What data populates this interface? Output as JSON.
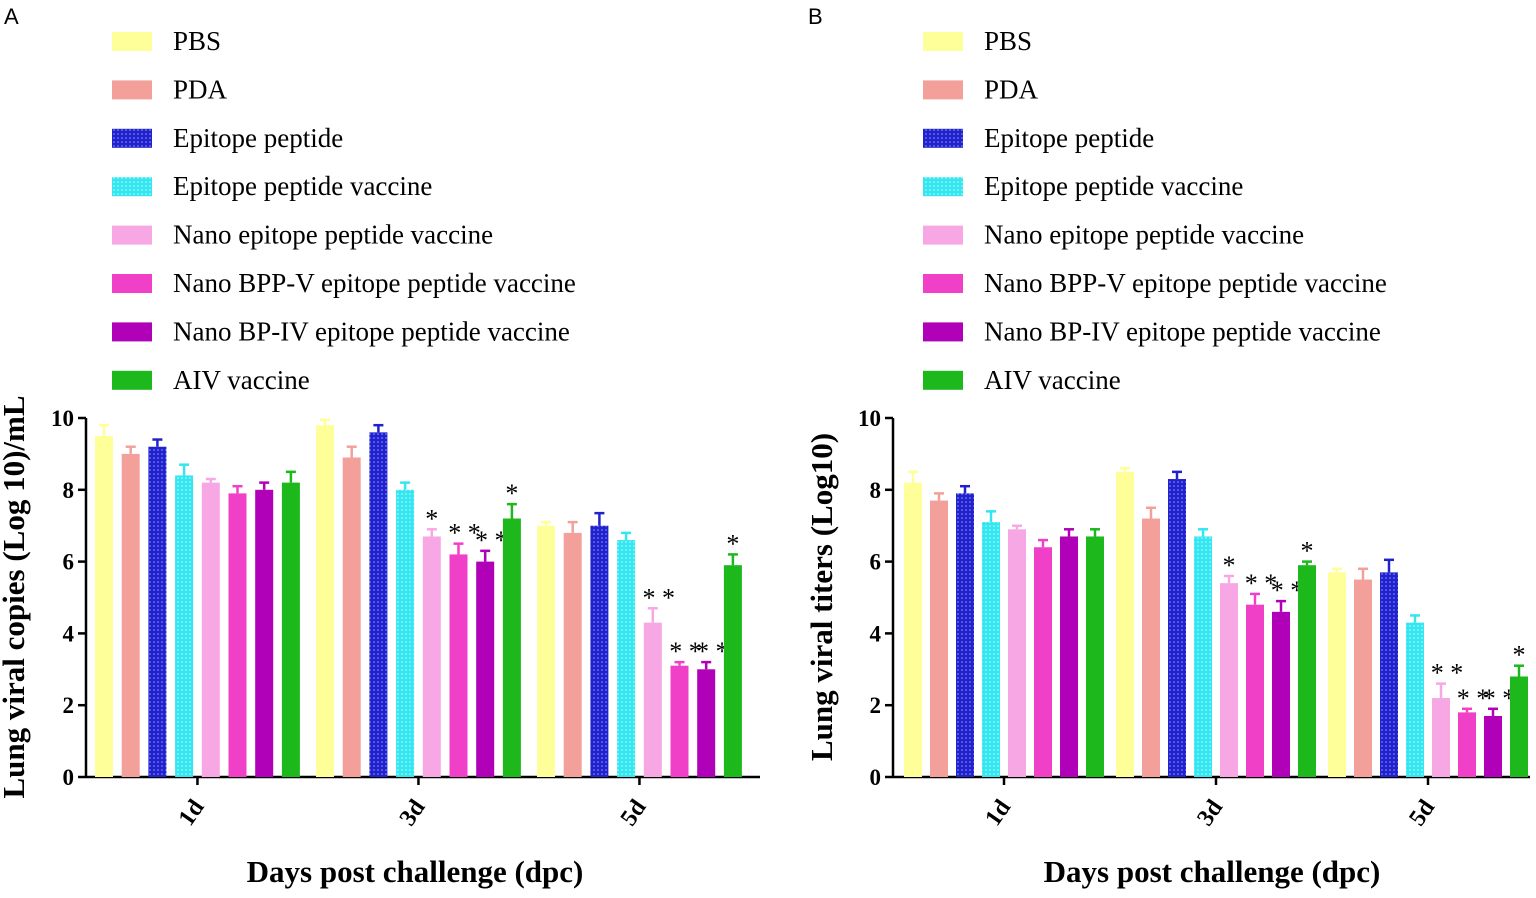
{
  "figure": {
    "panel_labels": [
      "A",
      "B"
    ]
  },
  "colors": {
    "PBS": "#ffff99",
    "PDA": "#f4a09a",
    "Epitope peptide": "#2222cc",
    "Epitope peptide vaccine": "#33e6f0",
    "Nano epitope peptide vaccine": "#f7a8e4",
    "Nano BPP-V epitope peptide vaccine": "#f040c8",
    "Nano BP-IV epitope peptide vaccine": "#b000b8",
    "AIV vaccine": "#1cb81c"
  },
  "chart_data": [
    {
      "panel": "A",
      "type": "bar",
      "title": "",
      "xlabel": "Days post challenge (dpc)",
      "ylabel": "Lung viral copies (Log 10)/mL",
      "ylim": [
        0,
        10
      ],
      "yticks": [
        "0",
        "2",
        "4",
        "6",
        "8",
        "10"
      ],
      "categories": [
        "1d",
        "3d",
        "5d"
      ],
      "legend": [
        "PBS",
        "PDA",
        "Epitope peptide",
        "Epitope peptide vaccine",
        "Nano epitope peptide vaccine",
        "Nano BPP-V epitope peptide vaccine",
        "Nano BP-IV epitope peptide vaccine",
        "AIV vaccine"
      ],
      "legend_position": "top",
      "series": [
        {
          "name": "PBS",
          "values": [
            9.5,
            9.8,
            7.0
          ],
          "errors": [
            0.3,
            0.15,
            0.1
          ],
          "stars": [
            "",
            "",
            ""
          ]
        },
        {
          "name": "PDA",
          "values": [
            9.0,
            8.9,
            6.8
          ],
          "errors": [
            0.2,
            0.3,
            0.3
          ],
          "stars": [
            "",
            "",
            ""
          ]
        },
        {
          "name": "Epitope peptide",
          "values": [
            9.2,
            9.6,
            7.0
          ],
          "errors": [
            0.2,
            0.2,
            0.35
          ],
          "stars": [
            "",
            "",
            ""
          ]
        },
        {
          "name": "Epitope peptide vaccine",
          "values": [
            8.4,
            8.0,
            6.6
          ],
          "errors": [
            0.3,
            0.2,
            0.2
          ],
          "stars": [
            "",
            "",
            ""
          ]
        },
        {
          "name": "Nano epitope peptide vaccine",
          "values": [
            8.2,
            6.7,
            4.3
          ],
          "errors": [
            0.1,
            0.2,
            0.4
          ],
          "stars": [
            "",
            "*",
            "**"
          ]
        },
        {
          "name": "Nano BPP-V epitope peptide vaccine",
          "values": [
            7.9,
            6.2,
            3.1
          ],
          "errors": [
            0.2,
            0.3,
            0.1
          ],
          "stars": [
            "",
            "**",
            "**"
          ]
        },
        {
          "name": "Nano BP-IV epitope peptide vaccine",
          "values": [
            8.0,
            6.0,
            3.0
          ],
          "errors": [
            0.2,
            0.3,
            0.2
          ],
          "stars": [
            "",
            "**",
            "**"
          ]
        },
        {
          "name": "AIV vaccine",
          "values": [
            8.2,
            7.2,
            5.9
          ],
          "errors": [
            0.3,
            0.4,
            0.3
          ],
          "stars": [
            "",
            "*",
            "*"
          ]
        }
      ]
    },
    {
      "panel": "B",
      "type": "bar",
      "title": "",
      "xlabel": "Days post challenge (dpc)",
      "ylabel": "Lung viral titers (Log10)",
      "ylim": [
        0,
        10
      ],
      "yticks": [
        "0",
        "2",
        "4",
        "6",
        "8",
        "10"
      ],
      "categories": [
        "1d",
        "3d",
        "5d"
      ],
      "legend": [
        "PBS",
        "PDA",
        "Epitope peptide",
        "Epitope peptide vaccine",
        "Nano epitope peptide vaccine",
        "Nano BPP-V epitope peptide vaccine",
        "Nano BP-IV epitope peptide vaccine",
        "AIV vaccine"
      ],
      "legend_position": "top",
      "series": [
        {
          "name": "PBS",
          "values": [
            8.2,
            8.5,
            5.7
          ],
          "errors": [
            0.3,
            0.1,
            0.1
          ],
          "stars": [
            "",
            "",
            ""
          ]
        },
        {
          "name": "PDA",
          "values": [
            7.7,
            7.2,
            5.5
          ],
          "errors": [
            0.2,
            0.3,
            0.3
          ],
          "stars": [
            "",
            "",
            ""
          ]
        },
        {
          "name": "Epitope peptide",
          "values": [
            7.9,
            8.3,
            5.7
          ],
          "errors": [
            0.2,
            0.2,
            0.35
          ],
          "stars": [
            "",
            "",
            ""
          ]
        },
        {
          "name": "Epitope peptide vaccine",
          "values": [
            7.1,
            6.7,
            4.3
          ],
          "errors": [
            0.3,
            0.2,
            0.2
          ],
          "stars": [
            "",
            "",
            ""
          ]
        },
        {
          "name": "Nano epitope peptide vaccine",
          "values": [
            6.9,
            5.4,
            2.2
          ],
          "errors": [
            0.1,
            0.2,
            0.4
          ],
          "stars": [
            "",
            "*",
            "**"
          ]
        },
        {
          "name": "Nano BPP-V epitope peptide vaccine",
          "values": [
            6.4,
            4.8,
            1.8
          ],
          "errors": [
            0.2,
            0.3,
            0.1
          ],
          "stars": [
            "",
            "**",
            "**"
          ]
        },
        {
          "name": "Nano BP-IV epitope peptide vaccine",
          "values": [
            6.7,
            4.6,
            1.7
          ],
          "errors": [
            0.2,
            0.3,
            0.2
          ],
          "stars": [
            "",
            "**",
            "**"
          ]
        },
        {
          "name": "AIV vaccine",
          "values": [
            6.7,
            5.9,
            2.8
          ],
          "errors": [
            0.2,
            0.1,
            0.3
          ],
          "stars": [
            "",
            "*",
            "*"
          ]
        }
      ]
    }
  ]
}
